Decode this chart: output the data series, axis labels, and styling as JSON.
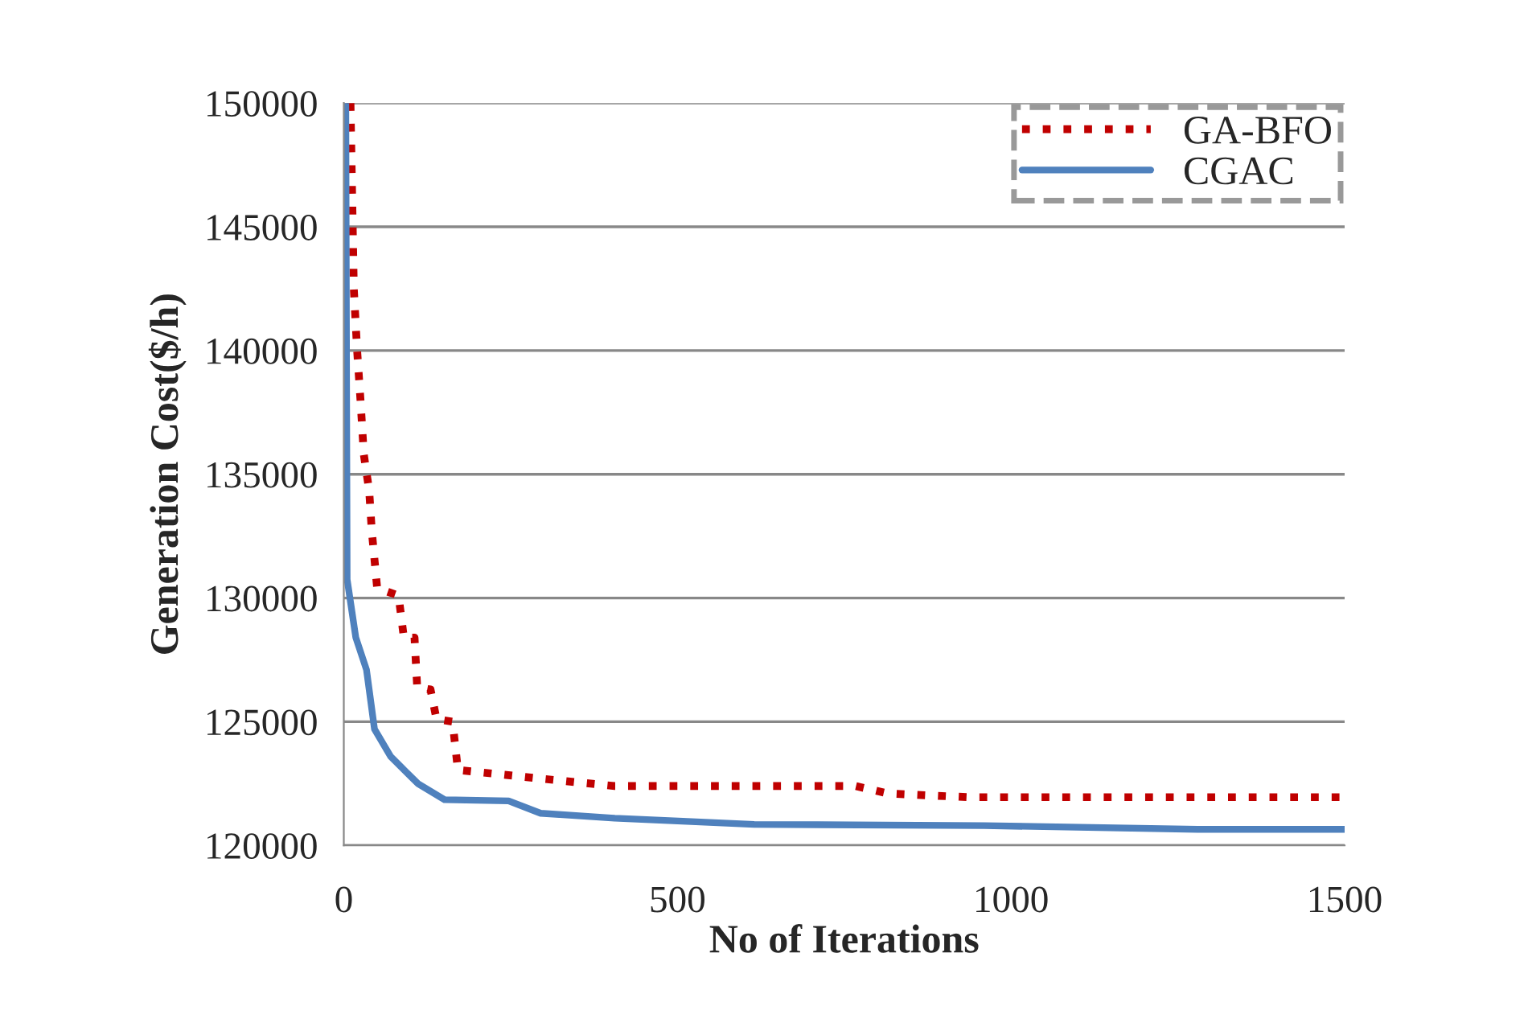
{
  "chart_data": {
    "type": "line",
    "xlabel": "No of Iterations",
    "ylabel": "Generation Cost($/h)",
    "xlim": [
      0,
      1500
    ],
    "xticks": [
      0,
      500,
      1000,
      1500
    ],
    "ylim": [
      120000,
      150000
    ],
    "yticks": [
      120000,
      125000,
      130000,
      135000,
      140000,
      145000,
      150000
    ],
    "grid": "y",
    "legend": "top right",
    "series": [
      {
        "name": "GA-BFO",
        "color": "#c00000",
        "line_style": "dotted",
        "x": [
          10,
          15,
          20,
          25,
          30,
          38,
          42,
          50,
          82,
          90,
          106,
          110,
          130,
          139,
          163,
          171,
          295,
          406,
          767,
          815,
          935,
          1500
        ],
        "values": [
          150000,
          142500,
          140000,
          138000,
          135800,
          134350,
          132700,
          130400,
          130100,
          128400,
          128400,
          126400,
          126300,
          125100,
          125000,
          123050,
          122700,
          122400,
          122400,
          122100,
          121950,
          121950
        ]
      },
      {
        "name": "CGAC",
        "color": "#4f81bd",
        "line_style": "solid",
        "x": [
          3,
          5,
          18,
          34,
          46,
          70,
          111,
          151,
          247,
          295,
          406,
          615,
          960,
          1280,
          1500
        ],
        "values": [
          150000,
          130750,
          128400,
          127100,
          124700,
          123600,
          122500,
          121850,
          121800,
          121300,
          121100,
          120850,
          120800,
          120650,
          120650
        ]
      }
    ]
  }
}
